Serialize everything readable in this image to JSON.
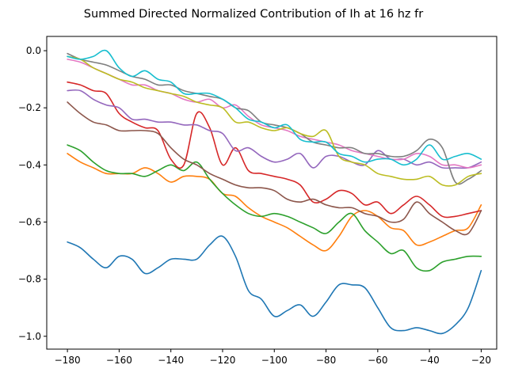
{
  "chart_data": {
    "type": "line",
    "title": "Summed Directed Normalized Contribution of Ih at 16 hz fr",
    "xlabel": "",
    "ylabel": "",
    "xlim": [
      -188,
      -14
    ],
    "ylim": [
      -1.045,
      0.05
    ],
    "xticks": [
      -180,
      -160,
      -140,
      -120,
      -100,
      -80,
      -60,
      -40,
      -20
    ],
    "xtick_labels": [
      "−180",
      "−160",
      "−140",
      "−120",
      "−100",
      "−80",
      "−60",
      "−40",
      "−20"
    ],
    "yticks": [
      0.0,
      -0.2,
      -0.4,
      -0.6,
      -0.8,
      -1.0
    ],
    "ytick_labels": [
      "0.0",
      "−0.2",
      "−0.4",
      "−0.6",
      "−0.8",
      "−1.0"
    ],
    "grid": false,
    "x": [
      -180,
      -175,
      -170,
      -165,
      -160,
      -155,
      -150,
      -145,
      -140,
      -135,
      -130,
      -125,
      -120,
      -115,
      -110,
      -105,
      -100,
      -95,
      -90,
      -85,
      -80,
      -75,
      -70,
      -65,
      -60,
      -55,
      -50,
      -45,
      -40,
      -35,
      -30,
      -25,
      -20
    ],
    "series": [
      {
        "color": "#1f77b4",
        "values": [
          -0.67,
          -0.69,
          -0.73,
          -0.76,
          -0.72,
          -0.73,
          -0.78,
          -0.76,
          -0.73,
          -0.73,
          -0.73,
          -0.68,
          -0.65,
          -0.72,
          -0.84,
          -0.87,
          -0.93,
          -0.91,
          -0.89,
          -0.93,
          -0.88,
          -0.82,
          -0.82,
          -0.83,
          -0.9,
          -0.97,
          -0.98,
          -0.97,
          -0.98,
          -0.99,
          -0.96,
          -0.9,
          -0.77
        ]
      },
      {
        "color": "#ff7f0e",
        "values": [
          -0.36,
          -0.39,
          -0.41,
          -0.43,
          -0.43,
          -0.43,
          -0.41,
          -0.43,
          -0.46,
          -0.44,
          -0.44,
          -0.45,
          -0.5,
          -0.51,
          -0.55,
          -0.58,
          -0.6,
          -0.62,
          -0.65,
          -0.68,
          -0.7,
          -0.65,
          -0.58,
          -0.56,
          -0.58,
          -0.62,
          -0.63,
          -0.68,
          -0.67,
          -0.65,
          -0.63,
          -0.62,
          -0.54
        ]
      },
      {
        "color": "#2ca02c",
        "values": [
          -0.33,
          -0.35,
          -0.39,
          -0.42,
          -0.43,
          -0.43,
          -0.44,
          -0.42,
          -0.4,
          -0.42,
          -0.39,
          -0.45,
          -0.5,
          -0.54,
          -0.57,
          -0.58,
          -0.57,
          -0.58,
          -0.6,
          -0.62,
          -0.64,
          -0.6,
          -0.57,
          -0.63,
          -0.67,
          -0.71,
          -0.7,
          -0.76,
          -0.77,
          -0.74,
          -0.73,
          -0.72,
          -0.72
        ]
      },
      {
        "color": "#d62728",
        "values": [
          -0.11,
          -0.12,
          -0.14,
          -0.15,
          -0.22,
          -0.25,
          -0.27,
          -0.28,
          -0.38,
          -0.4,
          -0.22,
          -0.27,
          -0.4,
          -0.34,
          -0.42,
          -0.43,
          -0.44,
          -0.45,
          -0.47,
          -0.53,
          -0.52,
          -0.49,
          -0.5,
          -0.54,
          -0.53,
          -0.57,
          -0.54,
          -0.51,
          -0.54,
          -0.58,
          -0.58,
          -0.57,
          -0.56
        ]
      },
      {
        "color": "#9467bd",
        "values": [
          -0.14,
          -0.14,
          -0.17,
          -0.19,
          -0.2,
          -0.24,
          -0.24,
          -0.25,
          -0.25,
          -0.26,
          -0.26,
          -0.28,
          -0.29,
          -0.35,
          -0.34,
          -0.37,
          -0.39,
          -0.38,
          -0.36,
          -0.41,
          -0.37,
          -0.37,
          -0.39,
          -0.4,
          -0.35,
          -0.38,
          -0.38,
          -0.4,
          -0.39,
          -0.41,
          -0.41,
          -0.41,
          -0.39
        ]
      },
      {
        "color": "#8c564b",
        "values": [
          -0.18,
          -0.22,
          -0.25,
          -0.26,
          -0.28,
          -0.28,
          -0.28,
          -0.29,
          -0.34,
          -0.38,
          -0.4,
          -0.43,
          -0.45,
          -0.47,
          -0.48,
          -0.48,
          -0.49,
          -0.52,
          -0.53,
          -0.52,
          -0.54,
          -0.55,
          -0.55,
          -0.57,
          -0.58,
          -0.6,
          -0.59,
          -0.53,
          -0.57,
          -0.6,
          -0.63,
          -0.64,
          -0.56
        ]
      },
      {
        "color": "#e377c2",
        "values": [
          -0.03,
          -0.04,
          -0.06,
          -0.08,
          -0.1,
          -0.12,
          -0.12,
          -0.14,
          -0.15,
          -0.17,
          -0.18,
          -0.17,
          -0.2,
          -0.19,
          -0.23,
          -0.26,
          -0.27,
          -0.28,
          -0.3,
          -0.31,
          -0.32,
          -0.33,
          -0.35,
          -0.36,
          -0.37,
          -0.38,
          -0.38,
          -0.36,
          -0.37,
          -0.4,
          -0.4,
          -0.41,
          -0.4
        ]
      },
      {
        "color": "#7f7f7f",
        "values": [
          -0.01,
          -0.03,
          -0.04,
          -0.05,
          -0.07,
          -0.09,
          -0.1,
          -0.12,
          -0.12,
          -0.14,
          -0.15,
          -0.16,
          -0.17,
          -0.2,
          -0.21,
          -0.25,
          -0.26,
          -0.27,
          -0.29,
          -0.32,
          -0.33,
          -0.34,
          -0.34,
          -0.36,
          -0.36,
          -0.37,
          -0.37,
          -0.35,
          -0.31,
          -0.34,
          -0.46,
          -0.45,
          -0.42
        ]
      },
      {
        "color": "#bcbd22",
        "values": [
          -0.02,
          -0.03,
          -0.06,
          -0.08,
          -0.1,
          -0.11,
          -0.13,
          -0.14,
          -0.15,
          -0.16,
          -0.18,
          -0.19,
          -0.2,
          -0.25,
          -0.25,
          -0.27,
          -0.28,
          -0.27,
          -0.29,
          -0.3,
          -0.28,
          -0.37,
          -0.39,
          -0.4,
          -0.43,
          -0.44,
          -0.45,
          -0.45,
          -0.44,
          -0.47,
          -0.47,
          -0.44,
          -0.43
        ]
      },
      {
        "color": "#17becf",
        "values": [
          -0.02,
          -0.03,
          -0.02,
          0.0,
          -0.06,
          -0.09,
          -0.07,
          -0.1,
          -0.11,
          -0.15,
          -0.15,
          -0.15,
          -0.17,
          -0.2,
          -0.24,
          -0.25,
          -0.27,
          -0.26,
          -0.31,
          -0.32,
          -0.32,
          -0.36,
          -0.37,
          -0.39,
          -0.38,
          -0.38,
          -0.4,
          -0.38,
          -0.33,
          -0.38,
          -0.37,
          -0.36,
          -0.38
        ]
      }
    ]
  }
}
